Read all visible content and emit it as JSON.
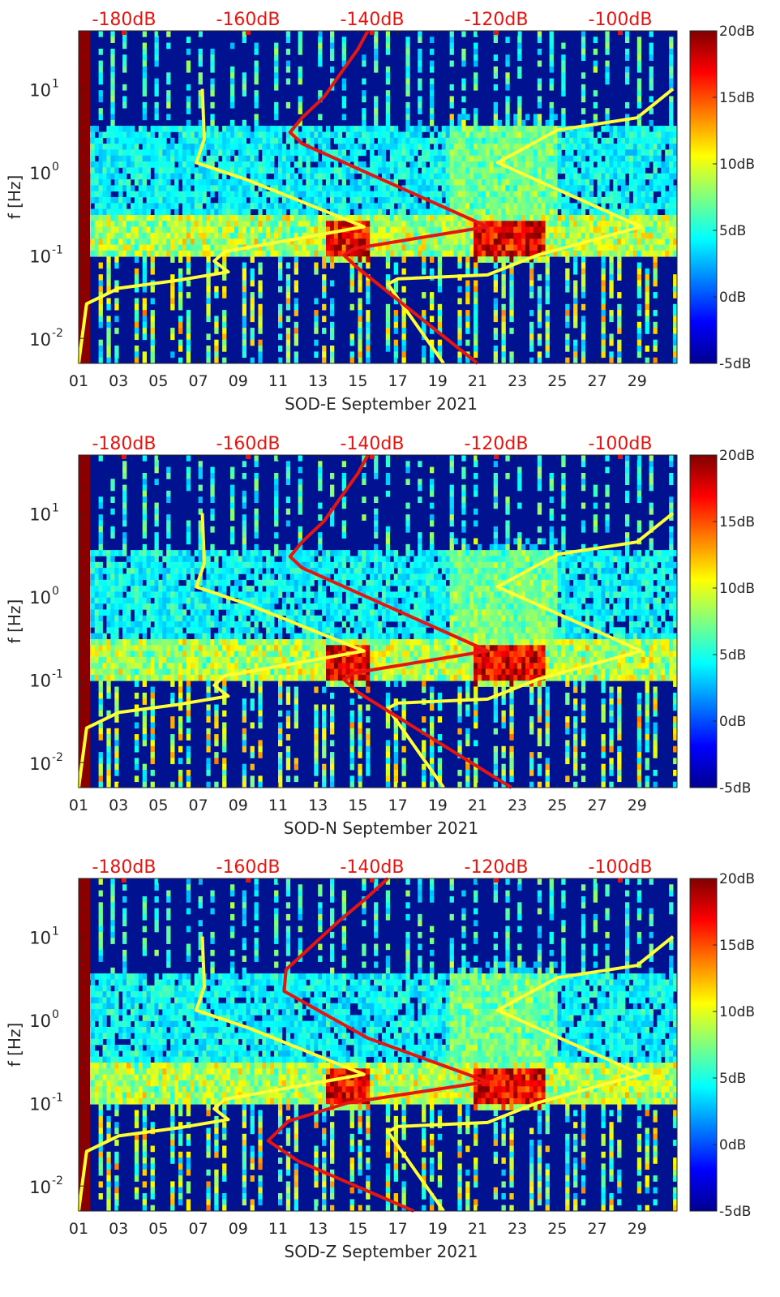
{
  "figure": {
    "background": "#ffffff"
  },
  "chart_data": [
    {
      "type": "heatmap",
      "xlabel": "SOD-E September 2021",
      "ylabel": "f [Hz]",
      "x_ticks": [
        "01",
        "03",
        "05",
        "07",
        "09",
        "11",
        "13",
        "15",
        "17",
        "19",
        "21",
        "23",
        "25",
        "27",
        "29"
      ],
      "y_ticks": [
        "10^-2",
        "10^-1",
        "10^0",
        "10^1"
      ],
      "y_scale": "log",
      "y_range": [
        0.005,
        50
      ],
      "x_range": [
        1,
        31
      ],
      "top_axis_ticks": [
        "-180dB",
        "-160dB",
        "-140dB",
        "-120dB",
        "-100dB"
      ],
      "colorbar": {
        "ticks": [
          "20dB",
          "15dB",
          "10dB",
          "5dB",
          "0dB",
          "-5dB"
        ],
        "range": [
          -5,
          20
        ],
        "colormap": "jet"
      },
      "series": [
        {
          "color": "#ffff33",
          "points": [
            [
              1,
              0.005
            ],
            [
              1.4,
              0.026
            ],
            [
              3,
              0.04
            ],
            [
              6,
              0.05
            ],
            [
              8.5,
              0.063
            ],
            [
              7.8,
              0.085
            ],
            [
              8.3,
              0.11
            ],
            [
              15.3,
              0.22
            ],
            [
              9.5,
              0.8
            ],
            [
              6.9,
              1.3
            ],
            [
              7.3,
              2.5
            ],
            [
              7.2,
              10
            ]
          ]
        },
        {
          "color": "#ffff33",
          "points": [
            [
              19.3,
              0.005
            ],
            [
              16.5,
              0.045
            ],
            [
              17,
              0.052
            ],
            [
              21.5,
              0.058
            ],
            [
              24,
              0.1
            ],
            [
              29.2,
              0.22
            ],
            [
              22,
              1.3
            ],
            [
              25,
              3.2
            ],
            [
              29,
              4.5
            ],
            [
              30.8,
              10
            ]
          ]
        },
        {
          "color": "#e8140f",
          "points": [
            [
              21,
              0.005
            ],
            [
              15,
              0.07
            ],
            [
              14.3,
              0.1
            ],
            [
              14.8,
              0.12
            ],
            [
              21.5,
              0.22
            ],
            [
              15.8,
              0.9
            ],
            [
              12.2,
              2.2
            ],
            [
              11.6,
              3
            ],
            [
              12.2,
              4.5
            ],
            [
              13.3,
              8
            ],
            [
              14.1,
              15
            ],
            [
              15,
              30
            ],
            [
              15.5,
              50
            ]
          ]
        }
      ]
    },
    {
      "type": "heatmap",
      "xlabel": "SOD-N September 2021",
      "ylabel": "f [Hz]",
      "x_ticks": [
        "01",
        "03",
        "05",
        "07",
        "09",
        "11",
        "13",
        "15",
        "17",
        "19",
        "21",
        "23",
        "25",
        "27",
        "29"
      ],
      "y_ticks": [
        "10^-2",
        "10^-1",
        "10^0",
        "10^1"
      ],
      "y_scale": "log",
      "y_range": [
        0.005,
        50
      ],
      "x_range": [
        1,
        31
      ],
      "top_axis_ticks": [
        "-180dB",
        "-160dB",
        "-140dB",
        "-120dB",
        "-100dB"
      ],
      "colorbar": {
        "ticks": [
          "20dB",
          "15dB",
          "10dB",
          "5dB",
          "0dB",
          "-5dB"
        ],
        "range": [
          -5,
          20
        ],
        "colormap": "jet"
      },
      "series": [
        {
          "color": "#ffff33",
          "points": [
            [
              1,
              0.005
            ],
            [
              1.4,
              0.026
            ],
            [
              3,
              0.04
            ],
            [
              6,
              0.05
            ],
            [
              8.5,
              0.063
            ],
            [
              7.8,
              0.085
            ],
            [
              8.3,
              0.11
            ],
            [
              15.3,
              0.22
            ],
            [
              9.5,
              0.8
            ],
            [
              6.9,
              1.3
            ],
            [
              7.3,
              2.5
            ],
            [
              7.2,
              10
            ]
          ]
        },
        {
          "color": "#ffff33",
          "points": [
            [
              19.3,
              0.005
            ],
            [
              16.5,
              0.045
            ],
            [
              17,
              0.052
            ],
            [
              21.5,
              0.058
            ],
            [
              24,
              0.1
            ],
            [
              29.2,
              0.22
            ],
            [
              22,
              1.3
            ],
            [
              25,
              3.2
            ],
            [
              29,
              4.5
            ],
            [
              30.8,
              10
            ]
          ]
        },
        {
          "color": "#e8140f",
          "points": [
            [
              22.7,
              0.005
            ],
            [
              15,
              0.07
            ],
            [
              14.3,
              0.1
            ],
            [
              14.8,
              0.12
            ],
            [
              21.5,
              0.22
            ],
            [
              15.8,
              0.9
            ],
            [
              12.2,
              2.2
            ],
            [
              11.6,
              3
            ],
            [
              12.2,
              4.5
            ],
            [
              13.3,
              8
            ],
            [
              14.1,
              15
            ],
            [
              15,
              30
            ],
            [
              15.5,
              50
            ]
          ]
        }
      ]
    },
    {
      "type": "heatmap",
      "xlabel": "SOD-Z September 2021",
      "ylabel": "f [Hz]",
      "x_ticks": [
        "01",
        "03",
        "05",
        "07",
        "09",
        "11",
        "13",
        "15",
        "17",
        "19",
        "21",
        "23",
        "25",
        "27",
        "29"
      ],
      "y_ticks": [
        "10^-2",
        "10^-1",
        "10^0",
        "10^1"
      ],
      "y_scale": "log",
      "y_range": [
        0.005,
        50
      ],
      "x_range": [
        1,
        31
      ],
      "top_axis_ticks": [
        "-180dB",
        "-160dB",
        "-140dB",
        "-120dB",
        "-100dB"
      ],
      "colorbar": {
        "ticks": [
          "20dB",
          "15dB",
          "10dB",
          "5dB",
          "0dB",
          "-5dB"
        ],
        "range": [
          -5,
          20
        ],
        "colormap": "jet"
      },
      "series": [
        {
          "color": "#ffff33",
          "points": [
            [
              1,
              0.005
            ],
            [
              1.4,
              0.026
            ],
            [
              3,
              0.04
            ],
            [
              6,
              0.05
            ],
            [
              8.5,
              0.063
            ],
            [
              7.8,
              0.085
            ],
            [
              8.3,
              0.11
            ],
            [
              15.3,
              0.22
            ],
            [
              9.5,
              0.8
            ],
            [
              6.9,
              1.3
            ],
            [
              7.3,
              2.5
            ],
            [
              7.2,
              10
            ]
          ]
        },
        {
          "color": "#ffff33",
          "points": [
            [
              19.3,
              0.005
            ],
            [
              16.5,
              0.045
            ],
            [
              17,
              0.052
            ],
            [
              21.5,
              0.058
            ],
            [
              24,
              0.1
            ],
            [
              29.2,
              0.22
            ],
            [
              22,
              1.3
            ],
            [
              25,
              3.2
            ],
            [
              29,
              4.5
            ],
            [
              30.8,
              10
            ]
          ]
        },
        {
          "color": "#e8140f",
          "points": [
            [
              17.8,
              0.005
            ],
            [
              12,
              0.02
            ],
            [
              10.5,
              0.035
            ],
            [
              11.5,
              0.06
            ],
            [
              14.5,
              0.1
            ],
            [
              21.5,
              0.18
            ],
            [
              15.5,
              0.6
            ],
            [
              11.3,
              2.2
            ],
            [
              11.4,
              4
            ],
            [
              12.5,
              7
            ],
            [
              14,
              15
            ],
            [
              15.5,
              30
            ],
            [
              16.5,
              50
            ]
          ]
        }
      ]
    }
  ]
}
